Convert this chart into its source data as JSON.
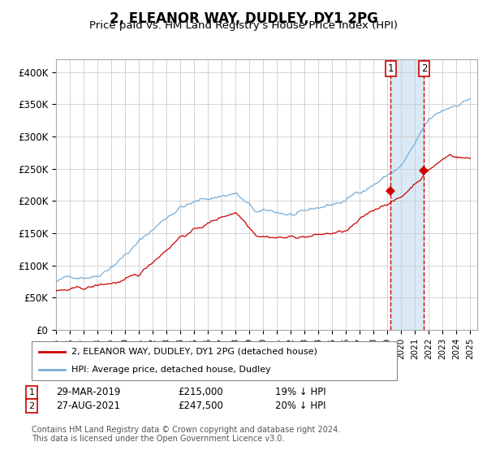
{
  "title": "2, ELEANOR WAY, DUDLEY, DY1 2PG",
  "subtitle": "Price paid vs. HM Land Registry's House Price Index (HPI)",
  "ylim": [
    0,
    420000
  ],
  "yticks": [
    0,
    50000,
    100000,
    150000,
    200000,
    250000,
    300000,
    350000,
    400000
  ],
  "hpi_color": "#7aadd4",
  "price_color": "#cc0000",
  "bg_color": "#ffffff",
  "grid_color": "#cccccc",
  "sale1_date": 2019.24,
  "sale1_price": 215000,
  "sale1_label": "29-MAR-2019",
  "sale1_pct": "19%",
  "sale2_date": 2021.65,
  "sale2_price": 247500,
  "sale2_label": "27-AUG-2021",
  "sale2_pct": "20%",
  "highlight_color": "#daeaf5",
  "dashed_color": "#cc0000",
  "legend_price_label": "2, ELEANOR WAY, DUDLEY, DY1 2PG (detached house)",
  "legend_hpi_label": "HPI: Average price, detached house, Dudley",
  "footer": "Contains HM Land Registry data © Crown copyright and database right 2024.\nThis data is licensed under the Open Government Licence v3.0.",
  "xstart": 1995,
  "xend": 2025
}
